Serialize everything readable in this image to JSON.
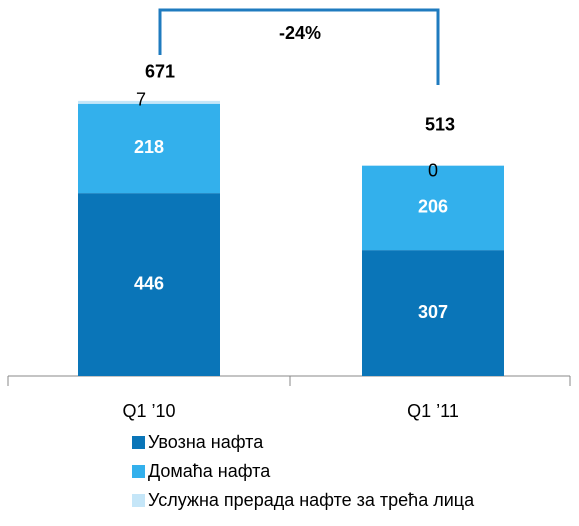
{
  "chart_data": {
    "type": "stacked_bar",
    "categories": [
      "Q1 ’10",
      "Q1 ’11"
    ],
    "series": [
      {
        "name": "Увозна нафта",
        "color": "#0a75b8",
        "values": [
          446,
          307
        ]
      },
      {
        "name": "Домаћа нафта",
        "color": "#33b0ec",
        "values": [
          218,
          206
        ]
      },
      {
        "name": "Услужна прерада нафте за трећа лица",
        "color": "#c5e6f8",
        "values": [
          7,
          0
        ]
      }
    ],
    "totals": [
      671,
      513
    ],
    "annotation": "-24%",
    "legend": "bottom"
  }
}
